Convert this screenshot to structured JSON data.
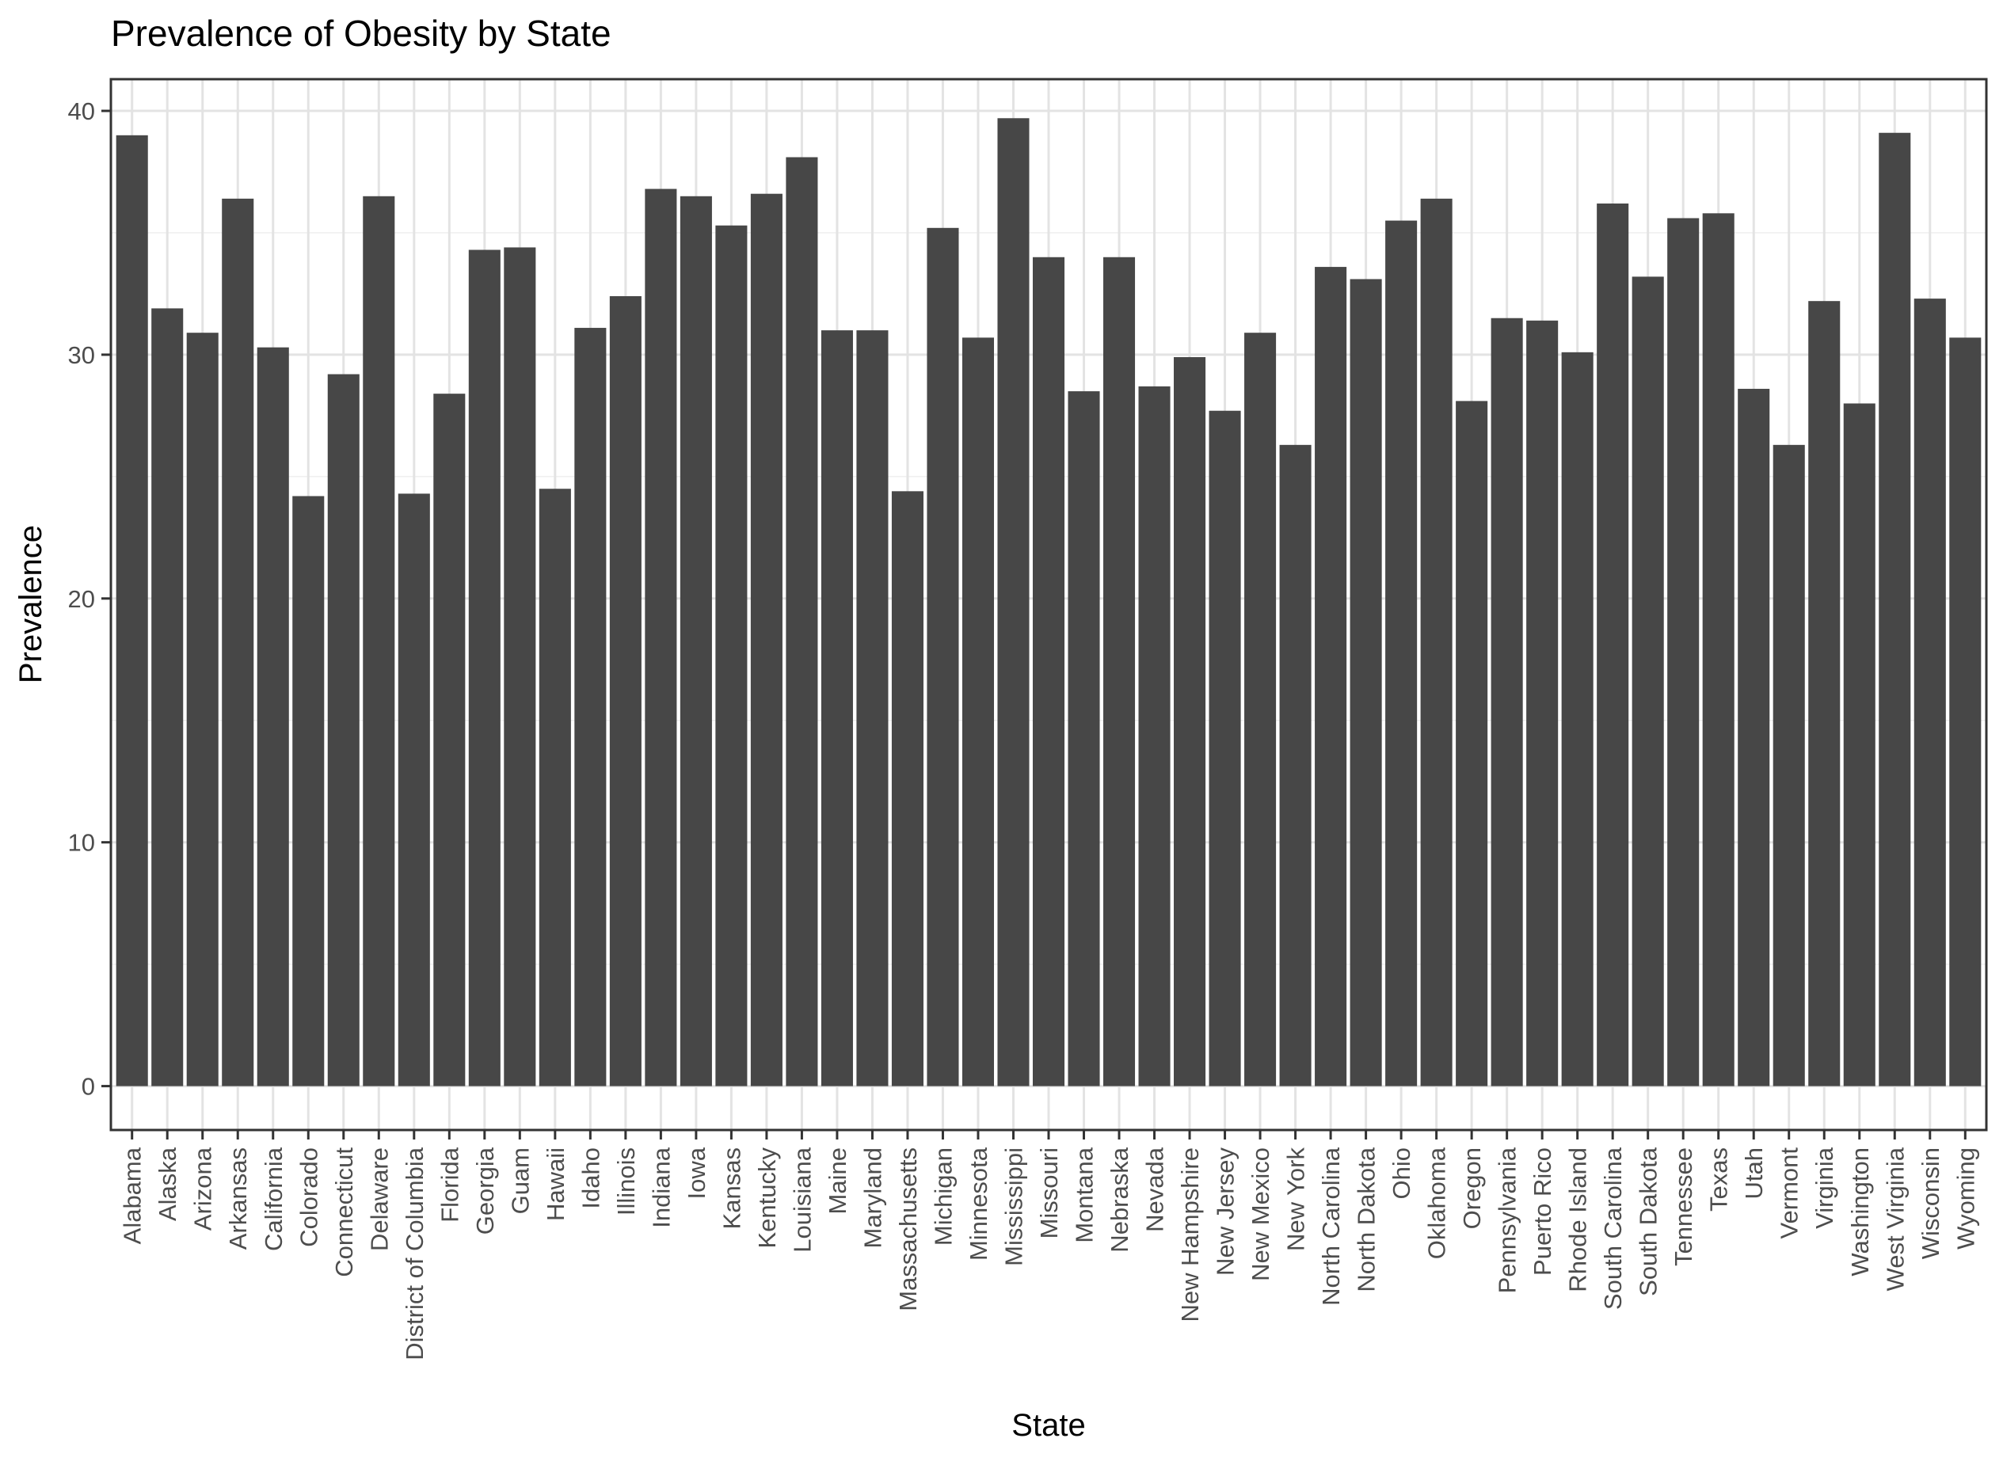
{
  "chart_data": {
    "type": "bar",
    "title": "Prevalence of Obesity by State",
    "xlabel": "State",
    "ylabel": "Prevalence",
    "ylim": [
      -1.8,
      41.3
    ],
    "yticks": [
      0,
      10,
      20,
      30,
      40
    ],
    "grid": true,
    "bar_color": "#474747",
    "categories": [
      "Alabama",
      "Alaska",
      "Arizona",
      "Arkansas",
      "California",
      "Colorado",
      "Connecticut",
      "Delaware",
      "District of Columbia",
      "Florida",
      "Georgia",
      "Guam",
      "Hawaii",
      "Idaho",
      "Illinois",
      "Indiana",
      "Iowa",
      "Kansas",
      "Kentucky",
      "Louisiana",
      "Maine",
      "Maryland",
      "Massachusetts",
      "Michigan",
      "Minnesota",
      "Mississippi",
      "Missouri",
      "Montana",
      "Nebraska",
      "Nevada",
      "New Hampshire",
      "New Jersey",
      "New Mexico",
      "New York",
      "North Carolina",
      "North Dakota",
      "Ohio",
      "Oklahoma",
      "Oregon",
      "Pennsylvania",
      "Puerto Rico",
      "Rhode Island",
      "South Carolina",
      "South Dakota",
      "Tennessee",
      "Texas",
      "Utah",
      "Vermont",
      "Virginia",
      "Washington",
      "West Virginia",
      "Wisconsin",
      "Wyoming"
    ],
    "values": [
      39.0,
      31.9,
      30.9,
      36.4,
      30.3,
      24.2,
      29.2,
      36.5,
      24.3,
      28.4,
      34.3,
      34.4,
      24.5,
      31.1,
      32.4,
      36.8,
      36.5,
      35.3,
      36.6,
      38.1,
      31.0,
      31.0,
      24.4,
      35.2,
      30.7,
      39.7,
      34.0,
      28.5,
      34.0,
      28.7,
      29.9,
      27.7,
      30.9,
      26.3,
      33.6,
      33.1,
      35.5,
      36.4,
      28.1,
      31.5,
      31.4,
      30.1,
      36.2,
      33.2,
      35.6,
      35.8,
      28.6,
      26.3,
      32.2,
      28.0,
      39.1,
      32.3,
      30.7
    ]
  }
}
